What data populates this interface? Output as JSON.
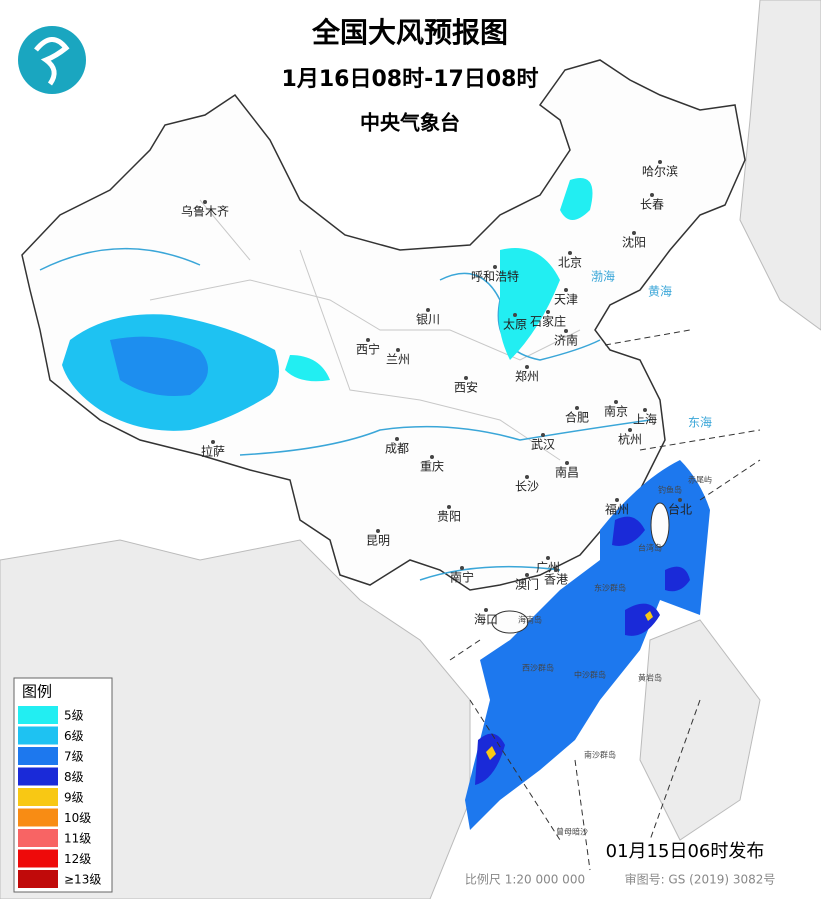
{
  "header": {
    "title": "全国大风预报图",
    "period": "1月16日08时-17日08时",
    "issuer": "中央气象台"
  },
  "cities": [
    {
      "name": "乌鲁木齐"
    },
    {
      "name": "哈尔滨"
    },
    {
      "name": "长春"
    },
    {
      "name": "沈阳"
    },
    {
      "name": "北京"
    },
    {
      "name": "天津"
    },
    {
      "name": "呼和浩特"
    },
    {
      "name": "银川"
    },
    {
      "name": "太原"
    },
    {
      "name": "石家庄"
    },
    {
      "name": "济南"
    },
    {
      "name": "西宁"
    },
    {
      "name": "兰州"
    },
    {
      "name": "郑州"
    },
    {
      "name": "西安"
    },
    {
      "name": "合肥"
    },
    {
      "name": "南京"
    },
    {
      "name": "上海"
    },
    {
      "name": "杭州"
    },
    {
      "name": "武汉"
    },
    {
      "name": "成都"
    },
    {
      "name": "拉萨"
    },
    {
      "name": "重庆"
    },
    {
      "name": "南昌"
    },
    {
      "name": "长沙"
    },
    {
      "name": "福州"
    },
    {
      "name": "台北"
    },
    {
      "name": "贵阳"
    },
    {
      "name": "昆明"
    },
    {
      "name": "南宁"
    },
    {
      "name": "广州"
    },
    {
      "name": "澳门"
    },
    {
      "name": "香港"
    },
    {
      "name": "海口"
    }
  ],
  "places": [
    "台湾岛",
    "海南岛",
    "钓鱼岛",
    "赤尾屿",
    "东沙群岛",
    "西沙群岛",
    "中沙群岛",
    "黄岩岛",
    "南沙群岛",
    "曾母暗沙"
  ],
  "seas": [
    "渤海",
    "黄海",
    "东海"
  ],
  "legend": {
    "title": "图例",
    "items": [
      {
        "label": "5级",
        "color": "#22eef2"
      },
      {
        "label": "6级",
        "color": "#1ec2f2"
      },
      {
        "label": "7级",
        "color": "#1d78ee"
      },
      {
        "label": "8级",
        "color": "#1a2ad8"
      },
      {
        "label": "9级",
        "color": "#f8c814"
      },
      {
        "label": "10级",
        "color": "#f88c14"
      },
      {
        "label": "11级",
        "color": "#f86464"
      },
      {
        "label": "12级",
        "color": "#ee0a0a"
      },
      {
        "label": "≥13级",
        "color": "#c00a0a"
      }
    ]
  },
  "footer": {
    "issued": "01月15日06时发布",
    "scale": "比例尺 1:20 000 000",
    "map_number": "审图号: GS (2019) 3082号"
  }
}
